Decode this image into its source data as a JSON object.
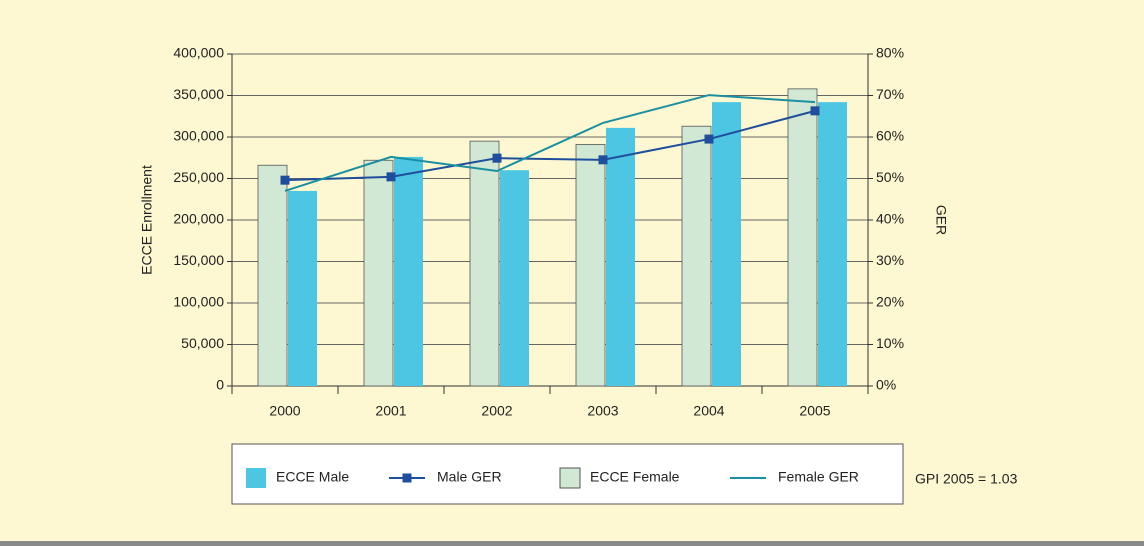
{
  "chart_data": {
    "type": "bar",
    "categories": [
      "2000",
      "2001",
      "2002",
      "2003",
      "2004",
      "2005"
    ],
    "series": [
      {
        "name": "ECCE Male",
        "type": "bar",
        "color": "#4dc6e4",
        "values": [
          235000,
          276000,
          260000,
          311000,
          342000,
          342000
        ]
      },
      {
        "name": "Male GER",
        "type": "line",
        "axis": "y2",
        "marker": "square",
        "color": "#1f4e9c",
        "values": [
          49.6,
          50.4,
          54.9,
          54.5,
          59.5,
          66.3
        ]
      },
      {
        "name": "ECCE Female",
        "type": "bar",
        "color": "#d0e8d4",
        "values": [
          266000,
          272000,
          295000,
          291000,
          313000,
          358000
        ]
      },
      {
        "name": "Female GER",
        "type": "line",
        "axis": "y2",
        "color": "#1a8f9f",
        "values": [
          47.0,
          55.2,
          51.8,
          63.4,
          70.1,
          68.4
        ]
      }
    ],
    "ylabel": "ECCE Enrollment",
    "y2label": "GER",
    "ylim": [
      0,
      400000
    ],
    "yticks": [
      0,
      {
        "value": 50000,
        "label": "50,000"
      },
      {
        "value": 100000,
        "label": "100,000"
      },
      {
        "value": 150000,
        "label": "150,000"
      },
      {
        "value": 200000,
        "label": "200,000"
      },
      {
        "value": 250000,
        "label": "250,000"
      },
      {
        "value": 300000,
        "label": "300,000"
      },
      {
        "value": 350000,
        "label": "350,000"
      },
      {
        "value": 400000,
        "label": "400,000"
      }
    ],
    "y2lim": [
      0,
      80
    ],
    "y2ticks": [
      {
        "value": 0,
        "label": "0%"
      },
      {
        "value": 10,
        "label": "10%"
      },
      {
        "value": 20,
        "label": "20%"
      },
      {
        "value": 30,
        "label": "30%"
      },
      {
        "value": 40,
        "label": "40%"
      },
      {
        "value": 50,
        "label": "50%"
      },
      {
        "value": 60,
        "label": "60%"
      },
      {
        "value": 70,
        "label": "70%"
      },
      {
        "value": 80,
        "label": "80%"
      }
    ],
    "grid": true,
    "legend": "bottom",
    "annotation": "GPI 2005 = 1.03"
  }
}
